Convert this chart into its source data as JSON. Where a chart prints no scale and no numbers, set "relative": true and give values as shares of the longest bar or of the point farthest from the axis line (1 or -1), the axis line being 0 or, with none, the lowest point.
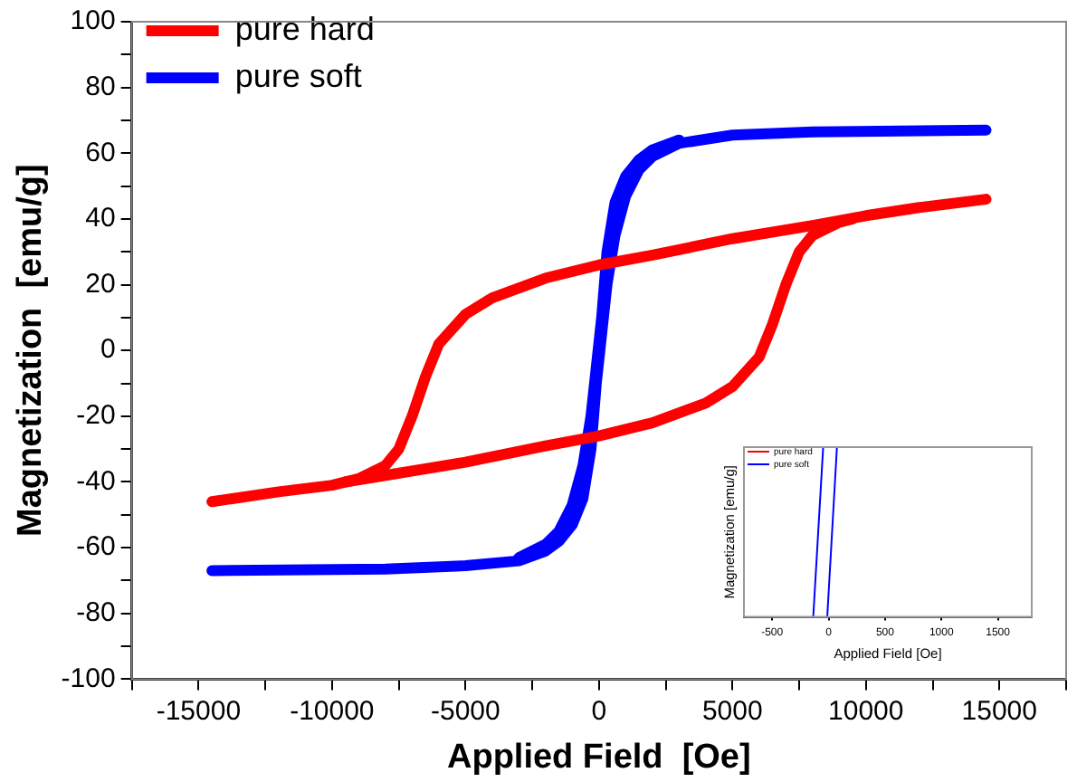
{
  "chart_data": [
    {
      "type": "line",
      "xlabel": "Applied Field  [Oe]",
      "ylabel": "Magnetization  [emu/g]",
      "xlim": [
        -17500,
        17500
      ],
      "ylim": [
        -100,
        100
      ],
      "xticks": [
        {
          "value": -17500,
          "label": null
        },
        -15000,
        {
          "value": -12500,
          "label": null
        },
        -10000,
        {
          "value": -7500,
          "label": null
        },
        -5000,
        {
          "value": -2500,
          "label": null
        },
        0,
        {
          "value": 2500,
          "label": null
        },
        5000,
        {
          "value": 7500,
          "label": null
        },
        10000,
        {
          "value": 12500,
          "label": null
        },
        15000,
        {
          "value": 17500,
          "label": null
        }
      ],
      "yticks": [
        -100,
        {
          "value": -90,
          "label": null
        },
        -80,
        {
          "value": -70,
          "label": null
        },
        -60,
        {
          "value": -50,
          "label": null
        },
        -40,
        {
          "value": -30,
          "label": null
        },
        -20,
        {
          "value": -10,
          "label": null
        },
        0,
        {
          "value": 10,
          "label": null
        },
        20,
        {
          "value": 30,
          "label": null
        },
        40,
        {
          "value": 50,
          "label": null
        },
        60,
        {
          "value": 70,
          "label": null
        },
        80,
        {
          "value": 90,
          "label": null
        },
        100
      ],
      "grid": false,
      "legend": "top left",
      "marker": "none",
      "line_style": "solid",
      "series": [
        {
          "name": "pure hard",
          "color": "#ff0000",
          "x": [
            -14500,
            -12000,
            -10000,
            -9000,
            -8000,
            -7500,
            -7000,
            -6500,
            -6000,
            -5000,
            -4000,
            -2000,
            0,
            2000,
            5000,
            8000,
            10000,
            12000,
            14500
          ],
          "values": [
            -46,
            -43,
            -41,
            -39,
            -35,
            -30,
            -20,
            -8,
            2,
            11,
            16,
            22,
            26,
            29,
            34,
            38,
            41,
            43.5,
            46
          ]
        },
        {
          "color": "#ff0000",
          "x": [
            -9500,
            -8000,
            -5000,
            -2000,
            0,
            2000,
            4000,
            5000,
            6000,
            6500,
            7000,
            7500,
            8000,
            9000,
            9500
          ],
          "values": [
            -40,
            -38,
            -34,
            -29,
            -26,
            -22,
            -16,
            -11,
            -2,
            8,
            20,
            30,
            35,
            39,
            40
          ]
        },
        {
          "name": "pure soft",
          "color": "#0000ff",
          "x": [
            -14500,
            -8000,
            -5000,
            -3000,
            -2000,
            -1500,
            -1000,
            -600,
            -300,
            -100,
            100,
            300,
            600,
            1000,
            1500,
            2000,
            3000,
            5000,
            8000,
            14500
          ],
          "values": [
            -67,
            -66.5,
            -65.5,
            -64,
            -61,
            -58,
            -53,
            -45,
            -30,
            -10,
            5,
            20,
            35,
            47,
            55,
            59,
            63,
            65.5,
            66.5,
            67
          ]
        },
        {
          "color": "#0000ff",
          "x": [
            -3000,
            -2000,
            -1500,
            -1000,
            -600,
            -300,
            -100,
            100,
            300,
            600,
            1000,
            1500,
            2000,
            3000
          ],
          "values": [
            -63,
            -59,
            -55,
            -47,
            -35,
            -20,
            -5,
            10,
            30,
            45,
            53,
            58,
            61,
            64
          ]
        }
      ]
    },
    {
      "type": "line",
      "xlabel": "Applied Field [Oe]",
      "ylabel": "Magnetization [emu/g]",
      "relative": true,
      "xlim": [
        -750,
        1800
      ],
      "xticks": [
        -500,
        0,
        500,
        1000,
        1500
      ],
      "grid": false,
      "legend": "top left",
      "marker": "none",
      "line_style": "solid",
      "tick_labels": "x",
      "series": [
        {
          "name": "pure hard",
          "color": "#ff0000"
        },
        {
          "name": "pure soft",
          "color": "#0000ff",
          "x": [
            -136,
            -48
          ],
          "values": [
            0,
            1
          ]
        },
        {
          "color": "#0000ff",
          "x": [
            -12,
            74
          ],
          "values": [
            0,
            1
          ]
        }
      ]
    }
  ]
}
